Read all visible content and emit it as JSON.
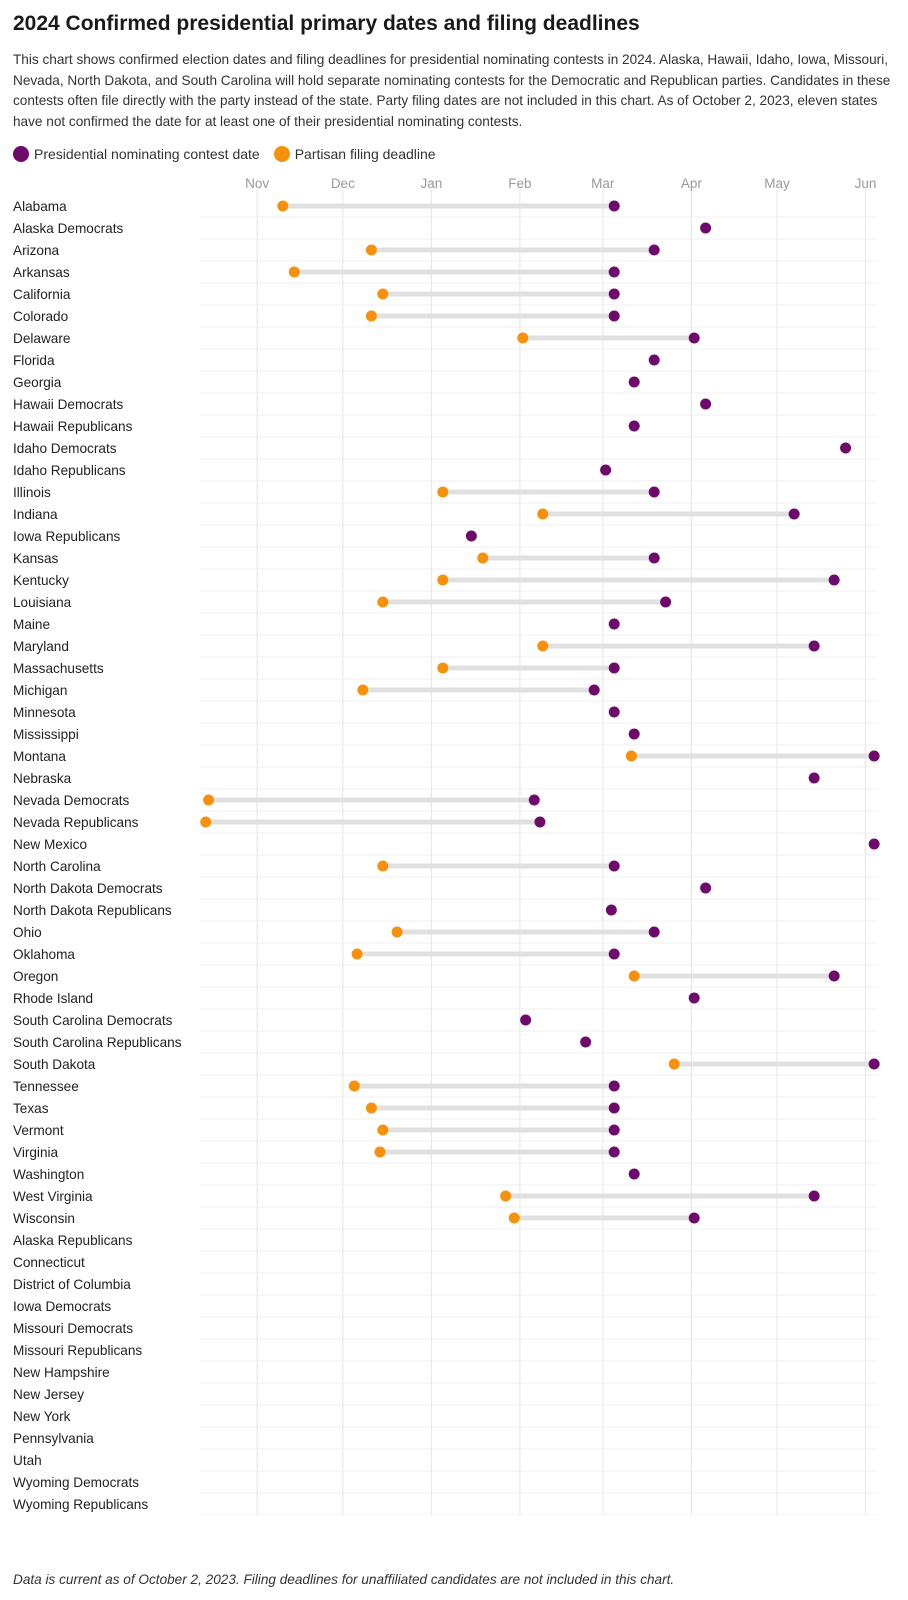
{
  "chart_data": {
    "type": "dumbbell",
    "title": "2024 Confirmed presidential primary dates and filing deadlines",
    "description": "This chart shows confirmed election dates and filing deadlines for presidential nominating contests in 2024. Alaska, Hawaii, Idaho, Iowa, Missouri, Nevada, North Dakota, and South Carolina will hold separate nominating contests for the Democratic and Republican parties. Candidates in these contests often file directly with the party instead of the state. Party filing dates are not included in this chart. As of October 2, 2023, eleven states have not confirmed the date for at least one of their presidential nominating contests.",
    "footnote": "Data is current as of October 2, 2023. Filing deadlines for unaffiliated candidates are not included in this chart.",
    "legend": [
      {
        "name": "Presidential nominating contest date",
        "color": "#6d0a6b"
      },
      {
        "name": "Partisan filing deadline",
        "color": "#f7900a"
      }
    ],
    "x_ticks": [
      {
        "label": "Nov",
        "date": "2023-11-01"
      },
      {
        "label": "Dec",
        "date": "2023-12-01"
      },
      {
        "label": "Jan",
        "date": "2024-01-01"
      },
      {
        "label": "Feb",
        "date": "2024-02-01"
      },
      {
        "label": "Mar",
        "date": "2024-03-01"
      },
      {
        "label": "Apr",
        "date": "2024-04-01"
      },
      {
        "label": "May",
        "date": "2024-05-01"
      },
      {
        "label": "Jun",
        "date": "2024-06-01"
      }
    ],
    "xlim": [
      "2023-10-12",
      "2024-06-05"
    ],
    "rows": [
      {
        "label": "Alabama",
        "filing": "2023-11-10",
        "contest": "2024-03-05"
      },
      {
        "label": "Alaska Democrats",
        "filing": null,
        "contest": "2024-04-06"
      },
      {
        "label": "Arizona",
        "filing": "2023-12-11",
        "contest": "2024-03-19"
      },
      {
        "label": "Arkansas",
        "filing": "2023-11-14",
        "contest": "2024-03-05"
      },
      {
        "label": "California",
        "filing": "2023-12-15",
        "contest": "2024-03-05"
      },
      {
        "label": "Colorado",
        "filing": "2023-12-11",
        "contest": "2024-03-05"
      },
      {
        "label": "Delaware",
        "filing": "2024-02-02",
        "contest": "2024-04-02"
      },
      {
        "label": "Florida",
        "filing": null,
        "contest": "2024-03-19"
      },
      {
        "label": "Georgia",
        "filing": null,
        "contest": "2024-03-12"
      },
      {
        "label": "Hawaii Democrats",
        "filing": null,
        "contest": "2024-04-06"
      },
      {
        "label": "Hawaii Republicans",
        "filing": null,
        "contest": "2024-03-12"
      },
      {
        "label": "Idaho Democrats",
        "filing": null,
        "contest": "2024-05-25"
      },
      {
        "label": "Idaho Republicans",
        "filing": null,
        "contest": "2024-03-02"
      },
      {
        "label": "Illinois",
        "filing": "2024-01-05",
        "contest": "2024-03-19"
      },
      {
        "label": "Indiana",
        "filing": "2024-02-09",
        "contest": "2024-05-07"
      },
      {
        "label": "Iowa Republicans",
        "filing": null,
        "contest": "2024-01-15"
      },
      {
        "label": "Kansas",
        "filing": "2024-01-19",
        "contest": "2024-03-19"
      },
      {
        "label": "Kentucky",
        "filing": "2024-01-05",
        "contest": "2024-05-21"
      },
      {
        "label": "Louisiana",
        "filing": "2023-12-15",
        "contest": "2024-03-23"
      },
      {
        "label": "Maine",
        "filing": null,
        "contest": "2024-03-05"
      },
      {
        "label": "Maryland",
        "filing": "2024-02-09",
        "contest": "2024-05-14"
      },
      {
        "label": "Massachusetts",
        "filing": "2024-01-05",
        "contest": "2024-03-05"
      },
      {
        "label": "Michigan",
        "filing": "2023-12-08",
        "contest": "2024-02-27"
      },
      {
        "label": "Minnesota",
        "filing": null,
        "contest": "2024-03-05"
      },
      {
        "label": "Mississippi",
        "filing": null,
        "contest": "2024-03-12"
      },
      {
        "label": "Montana",
        "filing": "2024-03-11",
        "contest": "2024-06-04"
      },
      {
        "label": "Nebraska",
        "filing": null,
        "contest": "2024-05-14"
      },
      {
        "label": "Nevada Democrats",
        "filing": "2023-10-15",
        "contest": "2024-02-06"
      },
      {
        "label": "Nevada Republicans",
        "filing": "2023-10-14",
        "contest": "2024-02-08"
      },
      {
        "label": "New Mexico",
        "filing": null,
        "contest": "2024-06-04"
      },
      {
        "label": "North Carolina",
        "filing": "2023-12-15",
        "contest": "2024-03-05"
      },
      {
        "label": "North Dakota Democrats",
        "filing": null,
        "contest": "2024-04-06"
      },
      {
        "label": "North Dakota Republicans",
        "filing": null,
        "contest": "2024-03-04"
      },
      {
        "label": "Ohio",
        "filing": "2023-12-20",
        "contest": "2024-03-19"
      },
      {
        "label": "Oklahoma",
        "filing": "2023-12-06",
        "contest": "2024-03-05"
      },
      {
        "label": "Oregon",
        "filing": "2024-03-12",
        "contest": "2024-05-21"
      },
      {
        "label": "Rhode Island",
        "filing": null,
        "contest": "2024-04-02"
      },
      {
        "label": "South Carolina Democrats",
        "filing": null,
        "contest": "2024-02-03"
      },
      {
        "label": "South Carolina Republicans",
        "filing": null,
        "contest": "2024-02-24"
      },
      {
        "label": "South Dakota",
        "filing": "2024-03-26",
        "contest": "2024-06-04"
      },
      {
        "label": "Tennessee",
        "filing": "2023-12-05",
        "contest": "2024-03-05"
      },
      {
        "label": "Texas",
        "filing": "2023-12-11",
        "contest": "2024-03-05"
      },
      {
        "label": "Vermont",
        "filing": "2023-12-15",
        "contest": "2024-03-05"
      },
      {
        "label": "Virginia",
        "filing": "2023-12-14",
        "contest": "2024-03-05"
      },
      {
        "label": "Washington",
        "filing": null,
        "contest": "2024-03-12"
      },
      {
        "label": "West Virginia",
        "filing": "2024-01-27",
        "contest": "2024-05-14"
      },
      {
        "label": "Wisconsin",
        "filing": "2024-01-30",
        "contest": "2024-04-02"
      },
      {
        "label": "Alaska Republicans",
        "filing": null,
        "contest": null
      },
      {
        "label": "Connecticut",
        "filing": null,
        "contest": null
      },
      {
        "label": "District of Columbia",
        "filing": null,
        "contest": null
      },
      {
        "label": "Iowa Democrats",
        "filing": null,
        "contest": null
      },
      {
        "label": "Missouri Democrats",
        "filing": null,
        "contest": null
      },
      {
        "label": "Missouri Republicans",
        "filing": null,
        "contest": null
      },
      {
        "label": "New Hampshire",
        "filing": null,
        "contest": null
      },
      {
        "label": "New Jersey",
        "filing": null,
        "contest": null
      },
      {
        "label": "New York",
        "filing": null,
        "contest": null
      },
      {
        "label": "Pennsylvania",
        "filing": null,
        "contest": null
      },
      {
        "label": "Utah",
        "filing": null,
        "contest": null
      },
      {
        "label": "Wyoming Democrats",
        "filing": null,
        "contest": null
      },
      {
        "label": "Wyoming Republicans",
        "filing": null,
        "contest": null
      }
    ]
  }
}
